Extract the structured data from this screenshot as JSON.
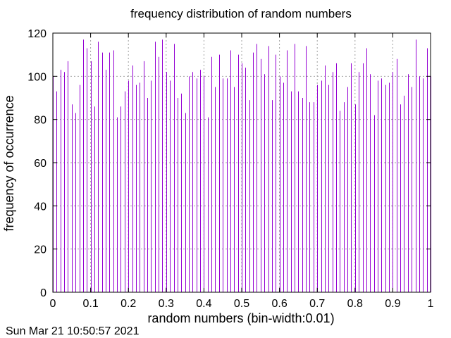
{
  "chart_data": {
    "type": "bar",
    "title": "frequency distribution of random numbers",
    "xlabel": "random numbers (bin-width:0.01)",
    "ylabel": "frequency of occurrence",
    "timestamp": "Sun Mar 21 10:50:57 2021",
    "xlim": [
      0,
      1
    ],
    "ylim": [
      0,
      120
    ],
    "xticks": [
      "0",
      "0.1",
      "0.2",
      "0.3",
      "0.4",
      "0.5",
      "0.6",
      "0.7",
      "0.8",
      "0.9",
      "1"
    ],
    "yticks": [
      "0",
      "20",
      "40",
      "60",
      "80",
      "100",
      "120"
    ],
    "grid": true,
    "bar_color": "#9400d3",
    "bin_width": 0.01,
    "x": [
      0.0,
      0.01,
      0.02,
      0.03,
      0.04,
      0.05,
      0.06,
      0.07,
      0.08,
      0.09,
      0.1,
      0.11,
      0.12,
      0.13,
      0.14,
      0.15,
      0.16,
      0.17,
      0.18,
      0.19,
      0.2,
      0.21,
      0.22,
      0.23,
      0.24,
      0.25,
      0.26,
      0.27,
      0.28,
      0.29,
      0.3,
      0.31,
      0.32,
      0.33,
      0.34,
      0.35,
      0.36,
      0.37,
      0.38,
      0.39,
      0.4,
      0.41,
      0.42,
      0.43,
      0.44,
      0.45,
      0.46,
      0.47,
      0.48,
      0.49,
      0.5,
      0.51,
      0.52,
      0.53,
      0.54,
      0.55,
      0.56,
      0.57,
      0.58,
      0.59,
      0.6,
      0.61,
      0.62,
      0.63,
      0.64,
      0.65,
      0.66,
      0.67,
      0.68,
      0.69,
      0.7,
      0.71,
      0.72,
      0.73,
      0.74,
      0.75,
      0.76,
      0.77,
      0.78,
      0.79,
      0.8,
      0.81,
      0.82,
      0.83,
      0.84,
      0.85,
      0.86,
      0.87,
      0.88,
      0.89,
      0.9,
      0.91,
      0.92,
      0.93,
      0.94,
      0.95,
      0.96,
      0.97,
      0.98,
      0.99,
      1.0
    ],
    "values": [
      100,
      93,
      103,
      102,
      107,
      87,
      83,
      96,
      117,
      113,
      107,
      86,
      116,
      111,
      103,
      111,
      112,
      81,
      86,
      93,
      98,
      105,
      96,
      97,
      107,
      90,
      98,
      116,
      109,
      117,
      102,
      98,
      115,
      90,
      92,
      83,
      100,
      102,
      99,
      103,
      100,
      81,
      109,
      95,
      110,
      99,
      99,
      112,
      95,
      110,
      106,
      104,
      89,
      111,
      115,
      108,
      101,
      114,
      89,
      110,
      100,
      97,
      112,
      93,
      115,
      93,
      90,
      114,
      88,
      88,
      96,
      98,
      105,
      96,
      102,
      106,
      84,
      88,
      95,
      106,
      87,
      102,
      106,
      113,
      101,
      82,
      98,
      99,
      96,
      97,
      102,
      108,
      87,
      91,
      101,
      95,
      117,
      100,
      99,
      113,
      100
    ]
  }
}
